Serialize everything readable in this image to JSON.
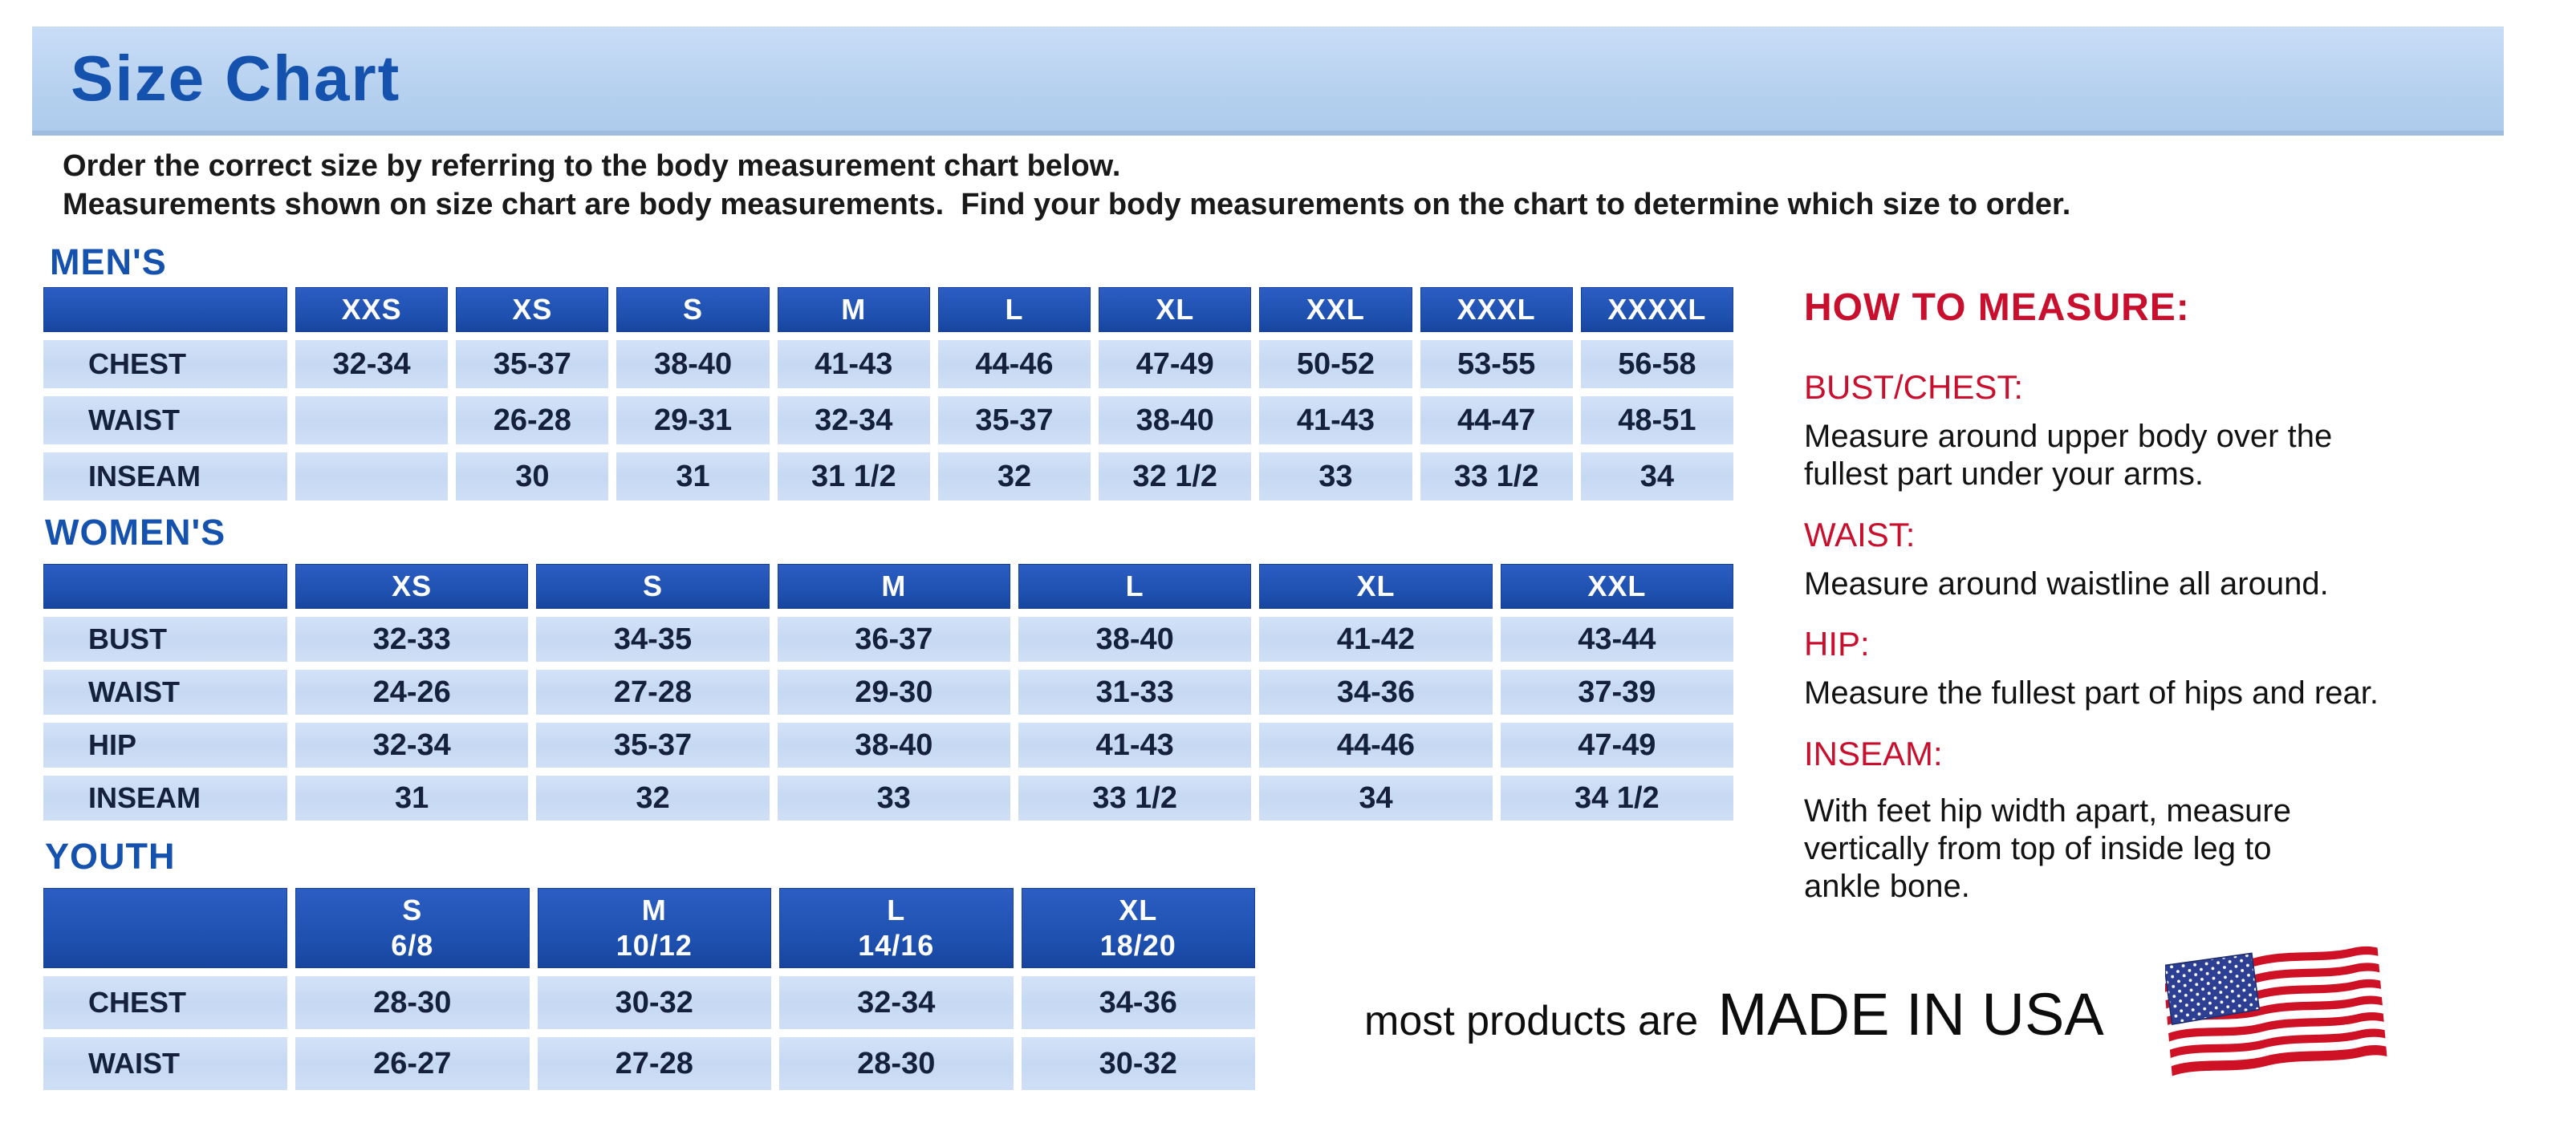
{
  "banner": {
    "title": "Size Chart"
  },
  "intro": {
    "line1": "Order the correct size by referring to the body measurement chart below.",
    "line2": "Measurements shown on size chart are body measurements.  Find your body measurements on the chart to determine which size to order."
  },
  "tables": {
    "mens": {
      "heading": "MEN'S",
      "columns": [
        "XXS",
        "XS",
        "S",
        "M",
        "L",
        "XL",
        "XXL",
        "XXXL",
        "XXXXL"
      ],
      "rows": [
        {
          "label": "CHEST",
          "values": [
            "32-34",
            "35-37",
            "38-40",
            "41-43",
            "44-46",
            "47-49",
            "50-52",
            "53-55",
            "56-58"
          ]
        },
        {
          "label": "WAIST",
          "values": [
            "",
            "26-28",
            "29-31",
            "32-34",
            "35-37",
            "38-40",
            "41-43",
            "44-47",
            "48-51"
          ]
        },
        {
          "label": "INSEAM",
          "values": [
            "",
            "30",
            "31",
            "31 1/2",
            "32",
            "32 1/2",
            "33",
            "33 1/2",
            "34"
          ]
        }
      ]
    },
    "womens": {
      "heading": "WOMEN'S",
      "columns": [
        "XS",
        "S",
        "M",
        "L",
        "XL",
        "XXL"
      ],
      "rows": [
        {
          "label": "BUST",
          "values": [
            "32-33",
            "34-35",
            "36-37",
            "38-40",
            "41-42",
            "43-44"
          ]
        },
        {
          "label": "WAIST",
          "values": [
            "24-26",
            "27-28",
            "29-30",
            "31-33",
            "34-36",
            "37-39"
          ]
        },
        {
          "label": "HIP",
          "values": [
            "32-34",
            "35-37",
            "38-40",
            "41-43",
            "44-46",
            "47-49"
          ]
        },
        {
          "label": "INSEAM",
          "values": [
            "31",
            "32",
            "33",
            "33 1/2",
            "34",
            "34 1/2"
          ]
        }
      ]
    },
    "youth": {
      "heading": "YOUTH",
      "columns": [
        "S\n6/8",
        "M\n10/12",
        "L\n14/16",
        "XL\n18/20"
      ],
      "rows": [
        {
          "label": "CHEST",
          "values": [
            "28-30",
            "30-32",
            "32-34",
            "34-36"
          ]
        },
        {
          "label": "WAIST",
          "values": [
            "26-27",
            "27-28",
            "28-30",
            "30-32"
          ]
        }
      ]
    }
  },
  "how_to_measure": {
    "title": "HOW TO MEASURE:",
    "sections": [
      {
        "heading": "BUST/CHEST:",
        "text": "Measure around upper body over the\nfullest part under your arms."
      },
      {
        "heading": "WAIST:",
        "text": "Measure around waistline all around."
      },
      {
        "heading": "HIP:",
        "text": "Measure the fullest part of hips and rear."
      },
      {
        "heading": "INSEAM:",
        "text": "With feet hip width apart, measure\nvertically from top of inside leg to\nankle bone."
      }
    ]
  },
  "footer": {
    "prefix": "most products are",
    "emphasis": "MADE IN USA",
    "flag_icon": "usa-flag-icon"
  },
  "colors": {
    "banner_blue": "#bcd4f1",
    "title_blue": "#1452ae",
    "header_cell_blue": "#1e50b0",
    "data_cell_blue": "#cadcf4",
    "cell_text_navy": "#15203d",
    "heading_red": "#c8102e",
    "flag_red": "#cf1125",
    "flag_navy": "#2d3f93"
  }
}
